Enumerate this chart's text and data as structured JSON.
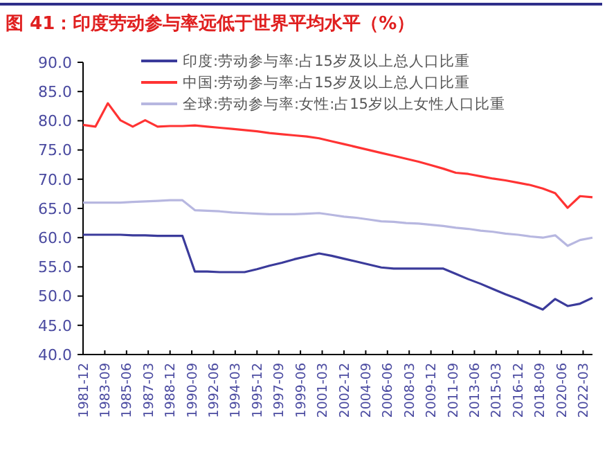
{
  "chart_data": {
    "type": "line",
    "title": "图 41：印度劳动参与率远低于世界平均水平（%）",
    "x": [
      "1981-12",
      "1982-12",
      "1983-12",
      "1984-12",
      "1985-12",
      "1986-12",
      "1987-12",
      "1988-12",
      "1989-12",
      "1990-12",
      "1991-12",
      "1992-12",
      "1993-12",
      "1994-12",
      "1995-12",
      "1996-12",
      "1997-12",
      "1998-12",
      "1999-12",
      "2000-12",
      "2001-12",
      "2002-12",
      "2003-12",
      "2004-12",
      "2005-12",
      "2006-12",
      "2007-12",
      "2008-12",
      "2009-12",
      "2010-12",
      "2011-12",
      "2012-12",
      "2013-12",
      "2014-12",
      "2015-12",
      "2016-12",
      "2017-12",
      "2018-12",
      "2019-12",
      "2020-12",
      "2021-12",
      "2022-12"
    ],
    "series": [
      {
        "name": "印度:劳动参与率:占15岁及以上总人口比重",
        "color": "#3b3b9b",
        "values": [
          60.5,
          60.5,
          60.5,
          60.5,
          60.4,
          60.4,
          60.3,
          60.3,
          60.3,
          54.2,
          54.2,
          54.1,
          54.1,
          54.1,
          54.6,
          55.2,
          55.7,
          56.3,
          56.8,
          57.3,
          56.9,
          56.4,
          55.9,
          55.4,
          54.9,
          54.7,
          54.7,
          54.7,
          54.7,
          54.7,
          53.8,
          52.9,
          52.1,
          51.2,
          50.3,
          49.5,
          48.6,
          47.7,
          49.5,
          48.3,
          48.7,
          49.7
        ]
      },
      {
        "name": "中国:劳动参与率:占15岁及以上总人口比重",
        "color": "#ff3333",
        "values": [
          79.3,
          79.0,
          83.0,
          80.1,
          79.0,
          80.1,
          79.0,
          79.1,
          79.1,
          79.2,
          79.0,
          78.8,
          78.6,
          78.4,
          78.2,
          77.9,
          77.7,
          77.5,
          77.3,
          77.0,
          76.5,
          76.0,
          75.5,
          75.0,
          74.5,
          74.0,
          73.5,
          73.0,
          72.4,
          71.8,
          71.1,
          70.9,
          70.5,
          70.1,
          69.8,
          69.4,
          69.0,
          68.4,
          67.6,
          65.1,
          67.1,
          66.9
        ]
      },
      {
        "name": "全球:劳动参与率:女性:占15岁以上女性人口比重",
        "color": "#b7b7e0",
        "values": [
          66.0,
          66.0,
          66.0,
          66.0,
          66.1,
          66.2,
          66.3,
          66.4,
          66.4,
          64.7,
          64.6,
          64.5,
          64.3,
          64.2,
          64.1,
          64.0,
          64.0,
          64.0,
          64.1,
          64.2,
          63.9,
          63.6,
          63.4,
          63.1,
          62.8,
          62.7,
          62.5,
          62.4,
          62.2,
          62.0,
          61.7,
          61.5,
          61.2,
          61.0,
          60.7,
          60.5,
          60.2,
          60.0,
          60.4,
          58.6,
          59.6,
          60.0
        ]
      }
    ],
    "xlim": [
      "1981-12",
      "2022-12"
    ],
    "xticks": [
      {
        "value": "1981-12",
        "label": "1981-12"
      },
      {
        "value": "1983-09",
        "label": "1983-09"
      },
      {
        "value": "1985-06",
        "label": "1985-06"
      },
      {
        "value": "1987-03",
        "label": "1987-03"
      },
      {
        "value": "1988-12",
        "label": "1988-12"
      },
      {
        "value": "1990-09",
        "label": "1990-09"
      },
      {
        "value": "1992-06",
        "label": "1992-06"
      },
      {
        "value": "1994-03",
        "label": "1994-03"
      },
      {
        "value": "1995-12",
        "label": "1995-12"
      },
      {
        "value": "1997-09",
        "label": "1997-09"
      },
      {
        "value": "1999-06",
        "label": "1999-06"
      },
      {
        "value": "2001-03",
        "label": "2001-03"
      },
      {
        "value": "2002-12",
        "label": "2002-12"
      },
      {
        "value": "2004-09",
        "label": "2004-09"
      },
      {
        "value": "2006-06",
        "label": "2006-06"
      },
      {
        "value": "2008-03",
        "label": "2008-03"
      },
      {
        "value": "2009-12",
        "label": "2009-12"
      },
      {
        "value": "2011-09",
        "label": "2011-09"
      },
      {
        "value": "2013-06",
        "label": "2013-06"
      },
      {
        "value": "2015-03",
        "label": "2015-03"
      },
      {
        "value": "2016-12",
        "label": "2016-12"
      },
      {
        "value": "2018-09",
        "label": "2018-09"
      },
      {
        "value": "2020-06",
        "label": "2020-06"
      },
      {
        "value": "2022-03",
        "label": "2022-03"
      }
    ],
    "ylim": [
      40,
      90
    ],
    "yticks": [
      {
        "value": 40,
        "label": "40.0"
      },
      {
        "value": 45,
        "label": "45.0"
      },
      {
        "value": 50,
        "label": "50.0"
      },
      {
        "value": 55,
        "label": "55.0"
      },
      {
        "value": 60,
        "label": "60.0"
      },
      {
        "value": 65,
        "label": "65.0"
      },
      {
        "value": 70,
        "label": "70.0"
      },
      {
        "value": 75,
        "label": "75.0"
      },
      {
        "value": 80,
        "label": "80.0"
      },
      {
        "value": 85,
        "label": "85.0"
      },
      {
        "value": 90,
        "label": "90.0"
      }
    ],
    "grid": false,
    "legend": "top",
    "marker": "none",
    "line_style": "solid"
  }
}
